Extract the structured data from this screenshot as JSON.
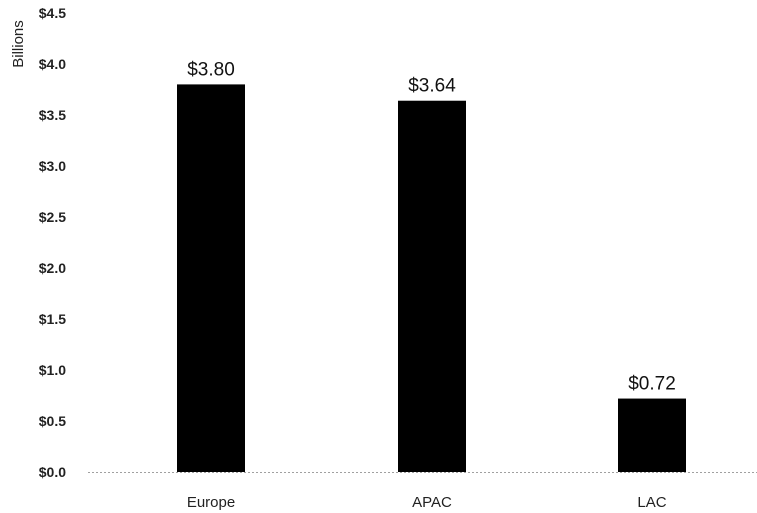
{
  "chart_data": {
    "type": "bar",
    "title": "",
    "xlabel": "",
    "ylabel": "Billions",
    "categories": [
      "Europe",
      "APAC",
      "LAC"
    ],
    "values": [
      3.8,
      3.64,
      0.72
    ],
    "data_labels": [
      "$3.80",
      "$3.64",
      "$0.72"
    ],
    "ylim": [
      0,
      4.5
    ],
    "y_ticks": [
      0,
      0.5,
      1.0,
      1.5,
      2.0,
      2.5,
      3.0,
      3.5,
      4.0,
      4.5
    ],
    "y_tick_labels": [
      "$0.0",
      "$0.5",
      "$1.0",
      "$1.5",
      "$2.0",
      "$2.5",
      "$3.0",
      "$3.5",
      "$4.0",
      "$4.5"
    ],
    "grid": false,
    "legend": "none",
    "bar_color": "#000000",
    "baseline_color": "#a0a0a0"
  }
}
